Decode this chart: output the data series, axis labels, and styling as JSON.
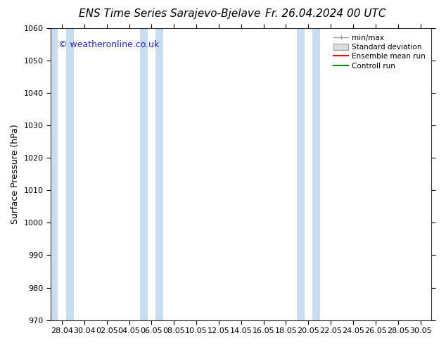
{
  "title_left": "ENS Time Series Sarajevo-Bjelave",
  "title_right": "Fr. 26.04.2024 00 UTC",
  "ylabel": "Surface Pressure (hPa)",
  "watermark": "© weatheronline.co.uk",
  "ylim": [
    970,
    1060
  ],
  "yticks": [
    970,
    980,
    990,
    1000,
    1010,
    1020,
    1030,
    1040,
    1050,
    1060
  ],
  "x_tick_labels": [
    "28.04",
    "30.04",
    "02.05",
    "04.05",
    "06.05",
    "08.05",
    "10.05",
    "12.05",
    "14.05",
    "16.05",
    "18.05",
    "20.05",
    "22.05",
    "24.05",
    "26.05",
    "28.05",
    "30.05"
  ],
  "band_color": "#c8ddf0",
  "background_color": "#ffffff",
  "plot_bg_color": "#ffffff",
  "legend_items": [
    {
      "label": "min/max",
      "color": "#aaaaaa",
      "style": "errorbar"
    },
    {
      "label": "Standard deviation",
      "color": "#cccccc",
      "style": "box"
    },
    {
      "label": "Ensemble mean run",
      "color": "#ff0000",
      "style": "line"
    },
    {
      "label": "Controll run",
      "color": "#008800",
      "style": "line"
    }
  ],
  "title_fontsize": 11,
  "axis_fontsize": 9,
  "tick_fontsize": 8,
  "watermark_fontsize": 9,
  "watermark_color": "#2222cc"
}
